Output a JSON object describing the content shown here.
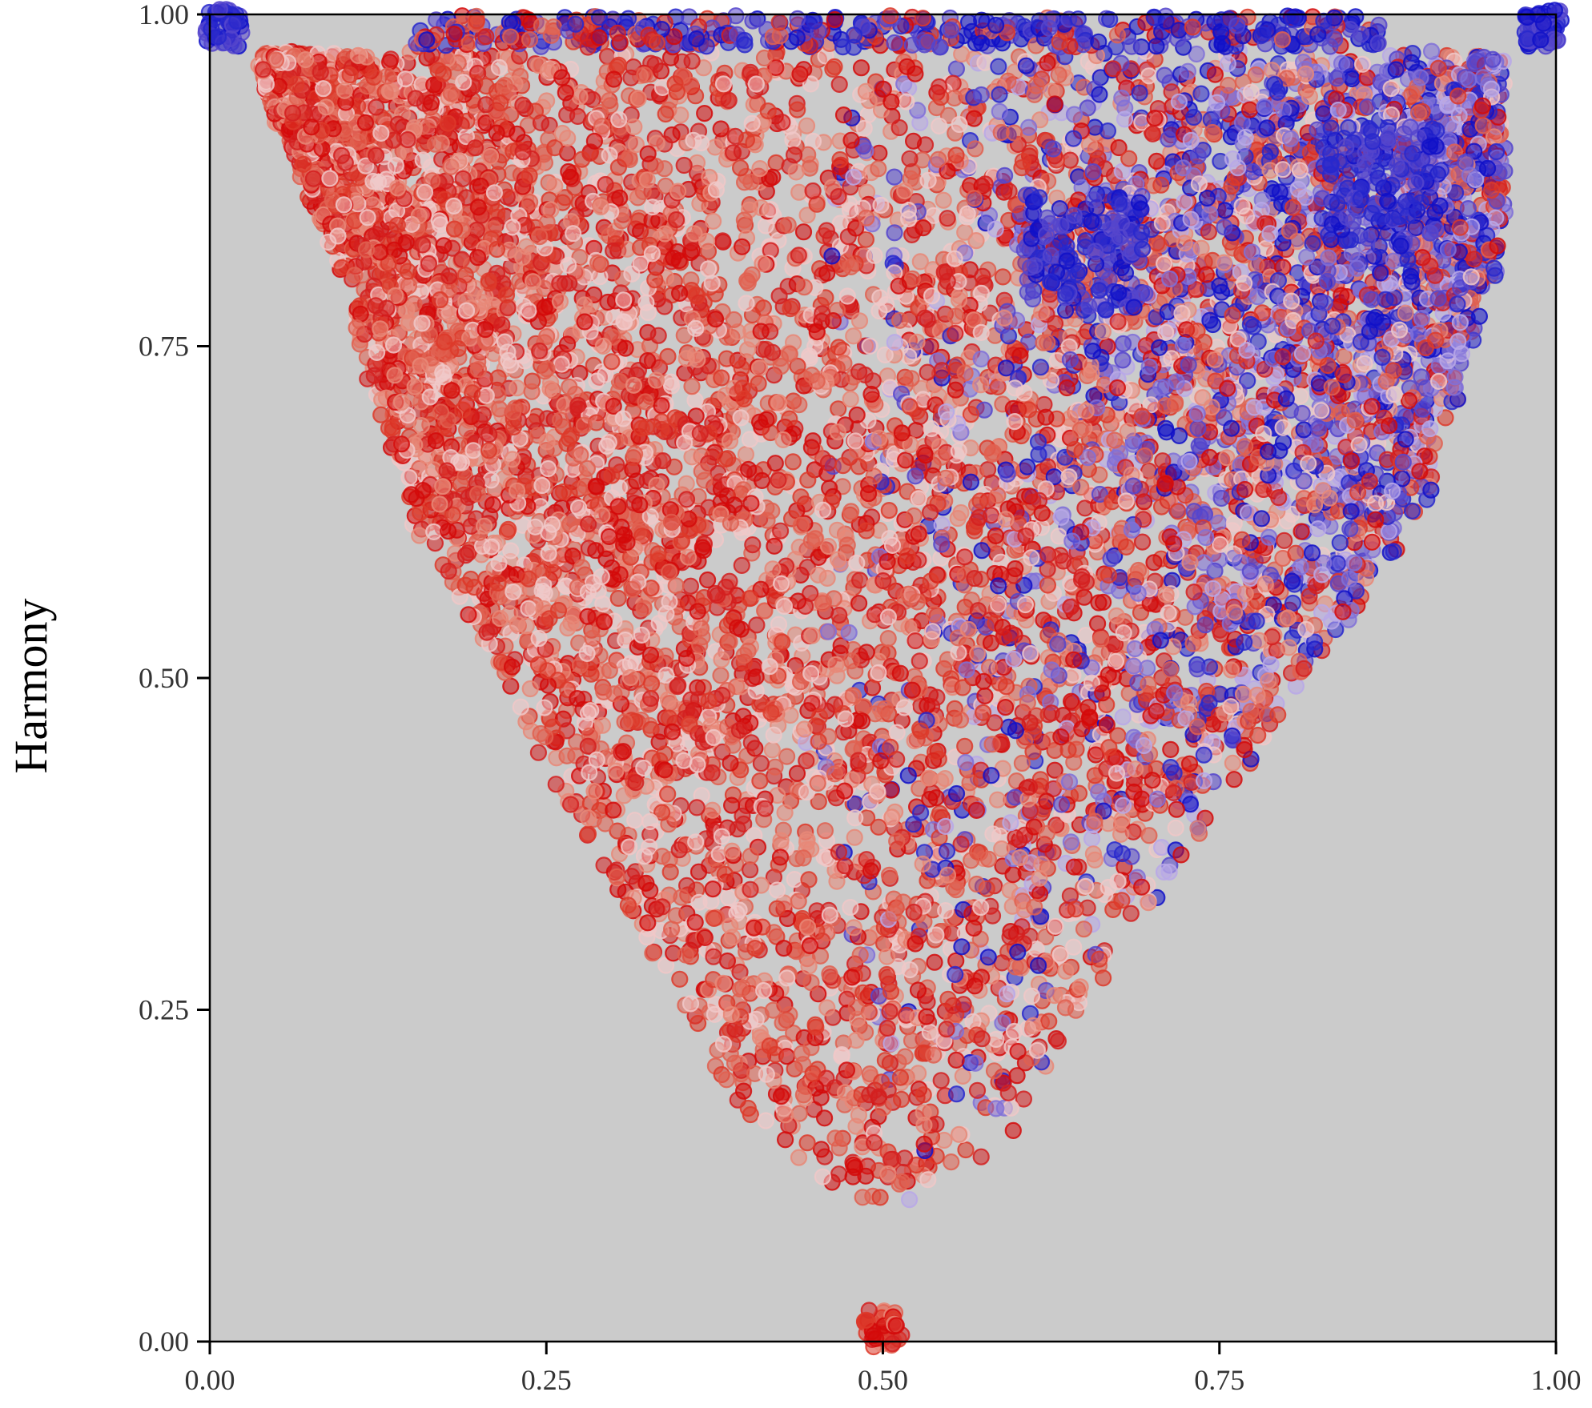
{
  "chart_data": {
    "type": "scatter",
    "title": "",
    "xlabel": "",
    "ylabel": "Harmony",
    "xlim": [
      0.0,
      1.0
    ],
    "ylim": [
      0.0,
      1.0
    ],
    "x_ticks": [
      "0.00",
      "0.25",
      "0.50",
      "0.75",
      "1.00"
    ],
    "y_ticks": [
      "0.00",
      "0.25",
      "0.50",
      "0.75",
      "1.00"
    ],
    "grid": false,
    "legend": "none",
    "background_color": "#cbcbcb",
    "point_colors": {
      "red": "#d40a0a",
      "blue": "#1010c8",
      "light": "#f0c8c8"
    },
    "points_approx_count": 9000,
    "envelope": [
      [
        0.04,
        0.95
      ],
      [
        0.1,
        0.8
      ],
      [
        0.15,
        0.62
      ],
      [
        0.2,
        0.52
      ],
      [
        0.3,
        0.34
      ],
      [
        0.4,
        0.17
      ],
      [
        0.5,
        0.09
      ],
      [
        0.6,
        0.16
      ],
      [
        0.7,
        0.33
      ],
      [
        0.8,
        0.48
      ],
      [
        0.9,
        0.62
      ],
      [
        0.95,
        0.8
      ]
    ],
    "clusters": [
      {
        "x": 0.01,
        "y": 0.99,
        "color": "blue"
      },
      {
        "x": 0.99,
        "y": 0.99,
        "color": "blue"
      },
      {
        "x": 0.5,
        "y": 0.01,
        "color": "red"
      },
      {
        "x": 0.87,
        "y": 0.87,
        "color": "blue"
      },
      {
        "x": 0.65,
        "y": 0.82,
        "color": "blue"
      }
    ]
  }
}
